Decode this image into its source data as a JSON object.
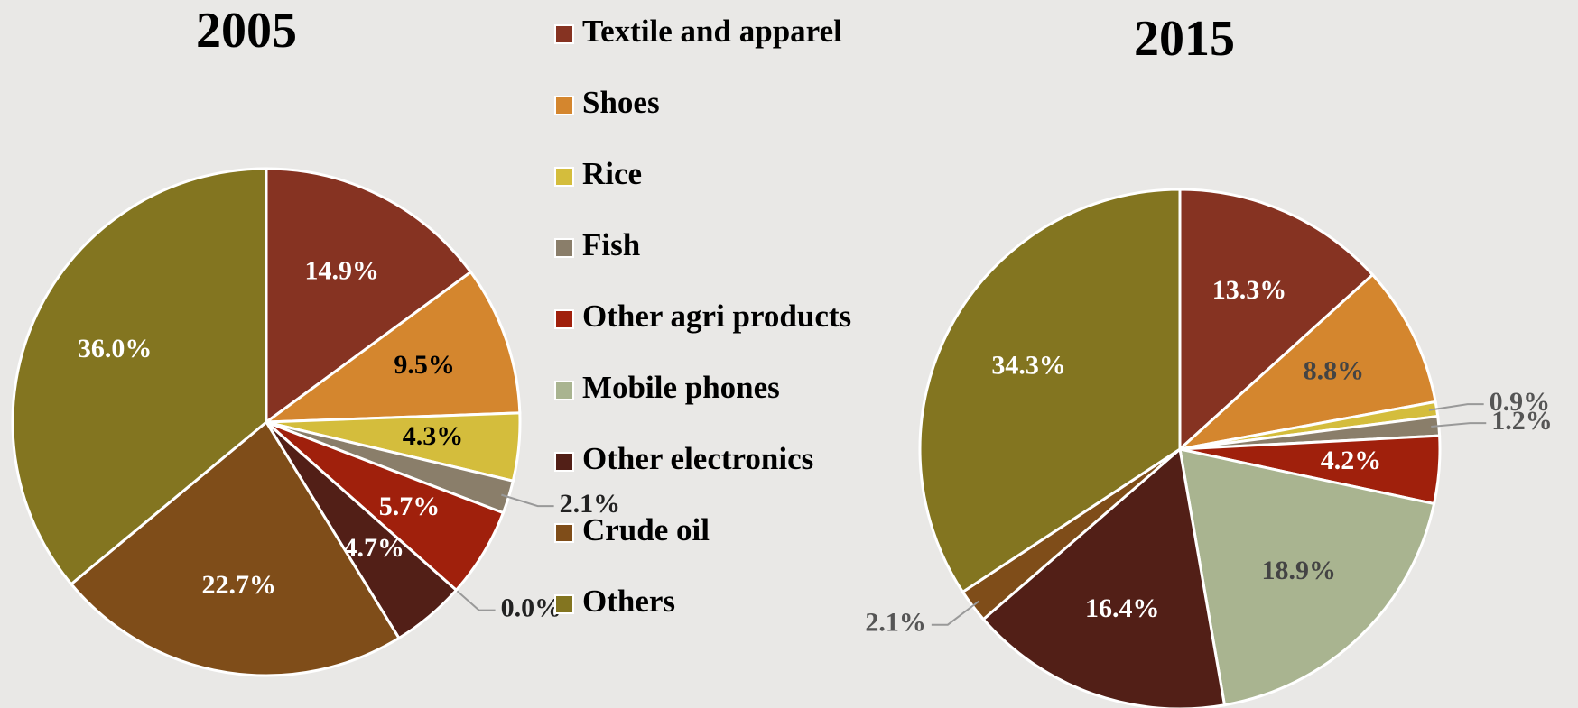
{
  "chart_data": [
    {
      "type": "pie",
      "title": "2005",
      "categories": [
        "Textile and apparel",
        "Shoes",
        "Rice",
        "Fish",
        "Other agri products",
        "Mobile phones",
        "Other electronics",
        "Crude oil",
        "Others"
      ],
      "values": [
        14.9,
        9.5,
        4.3,
        2.1,
        5.7,
        0.0,
        4.7,
        22.7,
        36.0
      ],
      "value_labels": [
        "14.9%",
        "9.5%",
        "4.3%",
        "2.1%",
        "5.7%",
        "0.0%",
        "4.7%",
        "22.7%",
        "36.0%"
      ],
      "colors": [
        "#863322",
        "#d4862e",
        "#d4bd3c",
        "#8a7e6a",
        "#a0200c",
        "#a9b490",
        "#521f17",
        "#7f4d19",
        "#837520"
      ]
    },
    {
      "type": "pie",
      "title": "2015",
      "categories": [
        "Textile and apparel",
        "Shoes",
        "Rice",
        "Fish",
        "Other agri products",
        "Mobile phones",
        "Other electronics",
        "Crude oil",
        "Others"
      ],
      "values": [
        13.3,
        8.8,
        0.9,
        1.2,
        4.2,
        18.9,
        16.4,
        2.1,
        34.3
      ],
      "value_labels": [
        "13.3%",
        "8.8%",
        "0.9%",
        "1.2%",
        "4.2%",
        "18.9%",
        "16.4%",
        "2.1%",
        "34.3%"
      ],
      "colors": [
        "#863322",
        "#d4862e",
        "#d4bd3c",
        "#8a7e6a",
        "#a0200c",
        "#a9b490",
        "#521f17",
        "#7f4d19",
        "#837520"
      ]
    }
  ]
}
